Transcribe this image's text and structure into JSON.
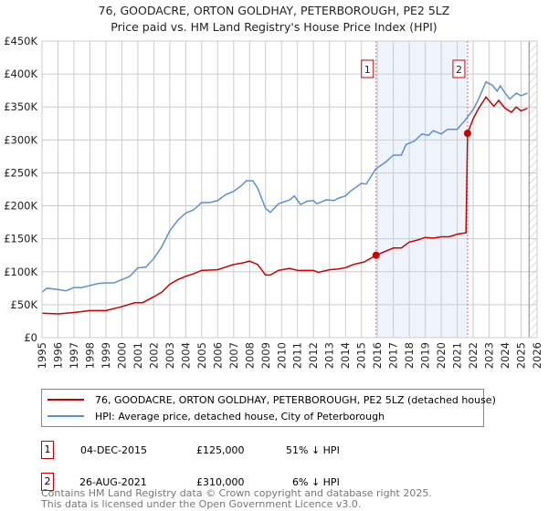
{
  "title": "76, GOODACRE, ORTON GOLDHAY, PETERBOROUGH, PE2 5LZ",
  "subtitle": "Price paid vs. HM Land Registry's House Price Index (HPI)",
  "chart_data": {
    "type": "line",
    "xlim": [
      1995,
      2026
    ],
    "ylim": [
      0,
      450000
    ],
    "yticks": [
      0,
      50000,
      100000,
      150000,
      200000,
      250000,
      300000,
      350000,
      400000,
      450000
    ],
    "ytick_labels": [
      "£0",
      "£50K",
      "£100K",
      "£150K",
      "£200K",
      "£250K",
      "£300K",
      "£350K",
      "£400K",
      "£450K"
    ],
    "xticks": [
      1995,
      1996,
      1997,
      1998,
      1999,
      2000,
      2001,
      2002,
      2003,
      2004,
      2005,
      2006,
      2007,
      2008,
      2009,
      2010,
      2011,
      2012,
      2013,
      2014,
      2015,
      2016,
      2017,
      2018,
      2019,
      2020,
      2021,
      2022,
      2023,
      2024,
      2025,
      2026
    ],
    "grid": true,
    "shaded_range": [
      2015.92,
      2021.65
    ],
    "hatched_from": 2025.5,
    "series": [
      {
        "name": "76, GOODACRE, ORTON GOLDHAY, PETERBOROUGH, PE2 5LZ (detached house)",
        "color": "#cc0000",
        "x": [
          1995,
          1996,
          1997,
          1998,
          1999,
          2000,
          2000.8,
          2001.3,
          2002,
          2002.5,
          2003,
          2003.5,
          2004,
          2004.5,
          2005,
          2006,
          2006.5,
          2007,
          2007.5,
          2008,
          2008.5,
          2009,
          2009.3,
          2009.8,
          2010.5,
          2011,
          2011.5,
          2012,
          2012.3,
          2013,
          2013.5,
          2014,
          2014.5,
          2015.2,
          2015.92,
          2016.5,
          2017,
          2017.5,
          2018,
          2018.5,
          2019,
          2019.5,
          2020,
          2020.5,
          2021,
          2021.55,
          2021.65,
          2022,
          2022.3,
          2022.8,
          2023.3,
          2023.6,
          2024,
          2024.4,
          2024.7,
          2025,
          2025.4
        ],
        "y": [
          37000,
          36000,
          38000,
          41000,
          41000,
          47000,
          53000,
          53000,
          62000,
          69000,
          81000,
          88000,
          93000,
          97000,
          102000,
          103000,
          107000,
          111000,
          113000,
          116000,
          111000,
          95000,
          95000,
          102000,
          105000,
          102000,
          102000,
          102000,
          99000,
          103000,
          104000,
          106000,
          111000,
          115000,
          125000,
          131000,
          136000,
          136000,
          145000,
          148000,
          152000,
          151000,
          153000,
          153000,
          157000,
          159000,
          310000,
          332000,
          346000,
          365000,
          351000,
          360000,
          348000,
          342000,
          350000,
          344000,
          348000
        ]
      },
      {
        "name": "HPI: Average price, detached house, City of Peterborough",
        "color": "#5b8fd4",
        "x": [
          1995,
          1995.3,
          1996,
          1996.5,
          1997,
          1997.5,
          1998,
          1998.5,
          1999,
          1999.5,
          2000,
          2000.5,
          2001,
          2001.5,
          2002,
          2002.5,
          2003,
          2003.5,
          2004,
          2004.5,
          2005,
          2005.5,
          2006,
          2006.5,
          2007,
          2007.5,
          2007.8,
          2008.2,
          2008.5,
          2009,
          2009.3,
          2009.8,
          2010.5,
          2010.8,
          2011.2,
          2011.6,
          2012,
          2012.2,
          2012.8,
          2013.3,
          2013.5,
          2014,
          2014.3,
          2015,
          2015.3,
          2015.9,
          2016.5,
          2017,
          2017.5,
          2017.8,
          2018.3,
          2018.8,
          2019.2,
          2019.5,
          2020,
          2020.4,
          2021,
          2021.5,
          2022,
          2022.3,
          2022.8,
          2023.2,
          2023.5,
          2023.7,
          2024,
          2024.3,
          2024.7,
          2025,
          2025.4
        ],
        "y": [
          69000,
          75000,
          73000,
          71000,
          76000,
          76000,
          79000,
          82000,
          83000,
          83000,
          88000,
          93000,
          106000,
          107000,
          120000,
          138000,
          162000,
          178000,
          189000,
          194000,
          205000,
          205000,
          208000,
          217000,
          222000,
          231000,
          238000,
          238000,
          227000,
          196000,
          190000,
          203000,
          209000,
          215000,
          202000,
          207000,
          208000,
          203000,
          209000,
          208000,
          211000,
          215000,
          222000,
          234000,
          233000,
          256000,
          266000,
          277000,
          277000,
          293000,
          298000,
          309000,
          307000,
          314000,
          309000,
          316000,
          316000,
          330000,
          346000,
          360000,
          388000,
          383000,
          374000,
          382000,
          371000,
          362000,
          371000,
          367000,
          371000
        ]
      }
    ],
    "sales": [
      {
        "label": "1",
        "date": "04-DEC-2015",
        "x": 2015.92,
        "price": "£125,000",
        "value": 125000,
        "hpi": "51% ↓ HPI"
      },
      {
        "label": "2",
        "date": "26-AUG-2021",
        "x": 2021.65,
        "price": "£310,000",
        "value": 310000,
        "hpi": "6% ↓ HPI"
      }
    ]
  },
  "footer": {
    "line1": "Contains HM Land Registry data © Crown copyright and database right 2025.",
    "line2": "This data is licensed under the Open Government Licence v3.0."
  }
}
